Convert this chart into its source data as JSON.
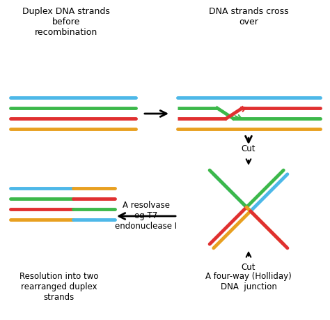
{
  "bg_color": "#ffffff",
  "colors": {
    "blue": "#4db8e8",
    "green": "#3cb84a",
    "red": "#e03030",
    "orange": "#e8a020"
  },
  "lw": 3.5,
  "title_fontsize": 9,
  "label_fontsize": 8.5,
  "texts": {
    "top_left": "Duplex DNA strands\nbefore\nrecombination",
    "top_right": "DNA strands cross\nover",
    "bottom_left_label": "Resolution into two\nrearranged duplex\nstrands",
    "bottom_right_label": "A four-way (Holliday)\nDNA  junction",
    "resolvase": "A resolvase\neg T7\nendonuclease I",
    "cut_top": "Cut",
    "cut_bottom": "Cut"
  }
}
